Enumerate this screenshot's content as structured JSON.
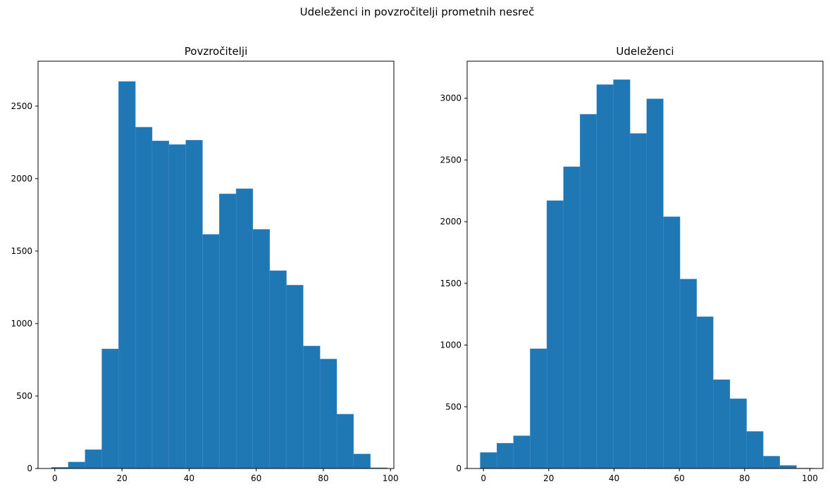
{
  "figure": {
    "suptitle": "Udeleženci in povzročitelji prometnih nesreč"
  },
  "colors": {
    "bar": "#1f77b4",
    "background": "#ffffff"
  },
  "chart_data": [
    {
      "type": "bar",
      "title": "Povzročitelji",
      "xlabel": "",
      "ylabel": "",
      "xlim": [
        -5,
        101
      ],
      "ylim": [
        0,
        2810
      ],
      "bin_edges": [
        -1,
        4,
        9,
        14,
        19,
        24,
        29,
        34,
        39,
        44,
        49,
        54,
        59,
        64,
        69,
        74,
        79,
        84,
        89,
        94,
        99
      ],
      "values": [
        8,
        45,
        130,
        825,
        2670,
        2355,
        2260,
        2235,
        2265,
        1615,
        1895,
        1930,
        1650,
        1365,
        1265,
        845,
        755,
        375,
        100,
        5
      ],
      "xticks": [
        0,
        20,
        40,
        60,
        80,
        100
      ],
      "yticks": [
        0,
        500,
        1000,
        1500,
        2000,
        2500
      ]
    },
    {
      "type": "bar",
      "title": "Udeleženci",
      "xlabel": "",
      "ylabel": "",
      "xlim": [
        -5,
        104
      ],
      "ylim": [
        0,
        3300
      ],
      "bin_edges": [
        -1,
        4.1,
        9.2,
        14.3,
        19.4,
        24.5,
        29.6,
        34.7,
        39.8,
        44.9,
        50,
        55.1,
        60.2,
        65.3,
        70.4,
        75.5,
        80.6,
        85.7,
        90.8,
        95.9,
        101
      ],
      "values": [
        130,
        205,
        265,
        970,
        2170,
        2445,
        2870,
        3110,
        3150,
        2715,
        2995,
        2040,
        1535,
        1230,
        720,
        565,
        300,
        100,
        25,
        3
      ],
      "xticks": [
        0,
        20,
        40,
        60,
        80,
        100
      ],
      "yticks": [
        0,
        500,
        1000,
        1500,
        2000,
        2500,
        3000
      ]
    }
  ]
}
